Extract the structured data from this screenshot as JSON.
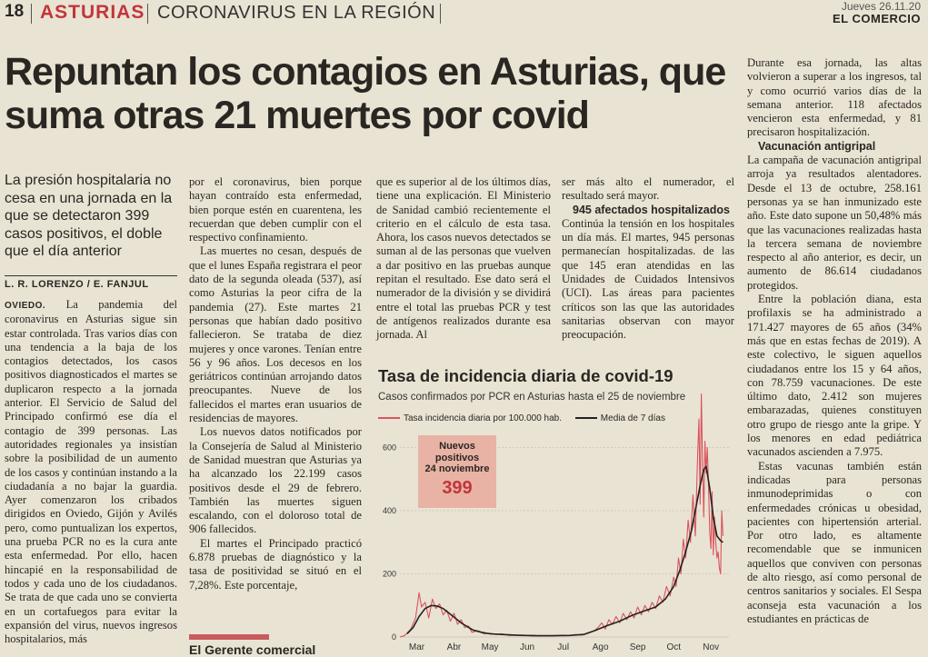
{
  "header": {
    "page_number": "18",
    "section": "ASTURIAS",
    "subsection": "CORONAVIRUS EN LA REGIÓN",
    "date": "Jueves 26.11.20",
    "newspaper": "EL COMERCIO"
  },
  "article": {
    "headline": "Repuntan los contagios en Asturias, que suma otras 21 muertes por covid",
    "deck": "La presión hospitalaria no cesa en una jornada en la que se detectaron 399 casos positivos, el doble que el día anterior",
    "byline": "L. R. LORENZO / E. FANJUL",
    "location": "OVIEDO.",
    "col1_p1": "La pandemia del coronavirus en Asturias sigue sin estar controlada. Tras varios días con una tendencia a la baja de los contagios detectados, los casos positivos diagnosticados el martes se duplicaron respecto a la jornada anterior. El Servicio de Salud del Principado confirmó ese día el contagio de 399 personas. Las autoridades regionales ya insistían sobre la posibilidad de un aumento de los casos y continúan instando a la ciudadanía a no bajar la guardia. Ayer comenzaron los cribados dirigidos en Oviedo, Gijón y Avilés pero, como puntualizan los expertos, una prueba PCR no es la cura ante esta enfermedad. Por ello, hacen hincapié en la responsabilidad de todos y cada uno de los ciudadanos. Se trata de que cada uno se convierta en un cortafuegos para evitar la expansión del virus, nuevos ingresos hospitalarios, más",
    "col2_p1": "por el coronavirus, bien porque hayan contraído esta enfermedad, bien porque estén en cuarentena, les recuerdan que deben cumplir con el respectivo confinamiento.",
    "col2_p2": "Las muertes no cesan, después de que el lunes España registrara el peor dato de la segunda oleada (537), así como Asturias la peor cifra de la pandemia (27). Este martes 21 personas que habían dado positivo fallecieron. Se trataba de diez mujeres y once varones. Tenían entre 56 y 96 años. Los decesos en los geriátricos continúan arrojando datos preocupantes. Nueve de los fallecidos el martes eran usuarios de residencias de mayores.",
    "col2_p3": "Los nuevos datos notificados por la Consejería de Salud al Ministerio de Sanidad muestran que Asturias ya ha alcanzado los 22.199 casos positivos desde el 29 de febrero. También las muertes siguen escalando, con el doloroso total de 906 fallecidos.",
    "col2_p4": "El martes el Principado practicó 6.878 pruebas de diagnóstico y la tasa de positividad se situó en el 7,28%. Este porcentaje,",
    "col2_cut": "El Gerente comercial",
    "col3_p1": "que es superior al de los últimos días, tiene una explicación. El Ministerio de Sanidad cambió recientemente el criterio en el cálculo de esta tasa. Ahora, los casos nuevos detectados se suman al de las personas que vuelven a dar positivo en las pruebas aunque repitan el resultado. Ese dato será el numerador de la división y se dividirá entre el total las pruebas PCR y test de antígenos realizados durante esa jornada. Al",
    "col4_p1": "ser más alto el numerador, el resultado será mayor.",
    "col4_subhead": "945 afectados hospitalizados",
    "col4_p2": "Continúa la tensión en los hospitales un día más. El martes, 945 personas permanecían hospitalizadas. de las que 145 eran atendidas en las Unidades de Cuidados Intensivos (UCI). Las áreas para pacientes críticos son las que las autoridades sanitarias observan con mayor preocupación.",
    "col5_p1": "Durante esa jornada, las altas volvieron a superar a los ingresos, tal y como ocurrió varios días de la semana anterior. 118 afectados vencieron esta enfermedad, y 81 precisaron hospitalización.",
    "col5_subhead": "Vacunación antigripal",
    "col5_p2": "La campaña de vacunación antigripal arroja ya resultados alentadores. Desde el 13 de octubre, 258.161 personas ya se han inmunizado este año. Este dato supone un 50,48% más que las vacunaciones realizadas hasta la tercera semana de noviembre respecto al año anterior, es decir, un aumento de 86.614 ciudadanos protegidos.",
    "col5_p3": "Entre la población diana, esta profilaxis se ha administrado a 171.427 mayores de 65 años (34% más que en estas fechas de 2019). A este colectivo, le siguen aquellos ciudadanos entre los 15 y 64 años, con 78.759 vacunaciones. De este último dato, 2.412 son mujeres embarazadas, quienes constituyen otro grupo de riesgo ante la gripe. Y los menores en edad pediátrica vacunados ascienden a 7.975.",
    "col5_p4": "Estas vacunas también están indicadas para personas inmunodeprimidas o con enfermedades crónicas u obesidad, pacientes con hipertensión arterial. Por otro lado, es altamente recomendable que se inmunicen aquellos que conviven con personas de alto riesgo, así como personal de centros sanitarios y sociales. El Sespa aconseja esta vacunación a los estudiantes en prácticas de"
  },
  "chart": {
    "title": "Tasa de incidencia diaria de covid-19",
    "subtitle": "Casos confirmados por PCR en Asturias hasta el 25 de noviembre",
    "legend_rate": "Tasa incidencia diaria por 100.000 hab.",
    "legend_avg": "Media de 7 días",
    "callout_label_1": "Nuevos",
    "callout_label_2": "positivos",
    "callout_label_3": "24 noviembre",
    "callout_value": "399",
    "colors": {
      "rate": "#d9545e",
      "avg": "#222222",
      "callout_bg": "#e8b3a4",
      "accent": "#c2353c"
    }
  },
  "chart_data": {
    "type": "line",
    "title": "Tasa de incidencia diaria de covid-19",
    "subtitle": "Casos confirmados por PCR en Asturias hasta el 25 de noviembre",
    "x_tick_labels": [
      "Mar",
      "Abr",
      "May",
      "Jun",
      "Jul",
      "Ago",
      "Sep",
      "Oct",
      "Nov"
    ],
    "y_ticks": [
      0,
      200,
      400,
      600
    ],
    "ylim": [
      0,
      800
    ],
    "annotation": {
      "label": "Nuevos positivos 24 noviembre",
      "value": 399
    },
    "series": [
      {
        "name": "Tasa incidencia diaria por 100.000 hab.",
        "color": "#d9545e",
        "points": [
          [
            "03-01",
            0
          ],
          [
            "03-05",
            5
          ],
          [
            "03-10",
            25
          ],
          [
            "03-14",
            60
          ],
          [
            "03-17",
            140
          ],
          [
            "03-19",
            95
          ],
          [
            "03-22",
            110
          ],
          [
            "03-25",
            60
          ],
          [
            "03-28",
            120
          ],
          [
            "03-31",
            90
          ],
          [
            "04-03",
            105
          ],
          [
            "04-06",
            70
          ],
          [
            "04-09",
            85
          ],
          [
            "04-12",
            50
          ],
          [
            "04-15",
            75
          ],
          [
            "04-18",
            40
          ],
          [
            "04-21",
            55
          ],
          [
            "04-24",
            30
          ],
          [
            "04-27",
            35
          ],
          [
            "04-30",
            15
          ],
          [
            "05-05",
            20
          ],
          [
            "05-10",
            10
          ],
          [
            "05-15",
            12
          ],
          [
            "05-20",
            8
          ],
          [
            "05-25",
            10
          ],
          [
            "05-31",
            5
          ],
          [
            "06-05",
            6
          ],
          [
            "06-10",
            4
          ],
          [
            "06-15",
            5
          ],
          [
            "06-20",
            6
          ],
          [
            "06-25",
            3
          ],
          [
            "06-30",
            4
          ],
          [
            "07-05",
            3
          ],
          [
            "07-10",
            5
          ],
          [
            "07-15",
            6
          ],
          [
            "07-20",
            4
          ],
          [
            "07-25",
            8
          ],
          [
            "07-31",
            6
          ],
          [
            "08-05",
            12
          ],
          [
            "08-10",
            20
          ],
          [
            "08-13",
            30
          ],
          [
            "08-16",
            45
          ],
          [
            "08-19",
            25
          ],
          [
            "08-22",
            55
          ],
          [
            "08-25",
            40
          ],
          [
            "08-28",
            65
          ],
          [
            "08-31",
            45
          ],
          [
            "09-03",
            75
          ],
          [
            "09-06",
            55
          ],
          [
            "09-09",
            80
          ],
          [
            "09-12",
            60
          ],
          [
            "09-15",
            95
          ],
          [
            "09-18",
            70
          ],
          [
            "09-21",
            100
          ],
          [
            "09-24",
            80
          ],
          [
            "09-27",
            110
          ],
          [
            "09-30",
            90
          ],
          [
            "10-03",
            130
          ],
          [
            "10-06",
            110
          ],
          [
            "10-09",
            160
          ],
          [
            "10-12",
            130
          ],
          [
            "10-15",
            190
          ],
          [
            "10-17",
            160
          ],
          [
            "10-19",
            250
          ],
          [
            "10-21",
            200
          ],
          [
            "10-23",
            310
          ],
          [
            "10-25",
            250
          ],
          [
            "10-27",
            370
          ],
          [
            "10-29",
            300
          ],
          [
            "10-31",
            450
          ],
          [
            "11-02",
            320
          ],
          [
            "11-04",
            580
          ],
          [
            "11-05",
            690
          ],
          [
            "11-06",
            420
          ],
          [
            "11-07",
            770
          ],
          [
            "11-08",
            560
          ],
          [
            "11-09",
            380
          ],
          [
            "11-10",
            620
          ],
          [
            "11-11",
            520
          ],
          [
            "11-12",
            600
          ],
          [
            "11-13",
            480
          ],
          [
            "11-14",
            330
          ],
          [
            "11-15",
            280
          ],
          [
            "11-16",
            460
          ],
          [
            "11-17",
            260
          ],
          [
            "11-18",
            380
          ],
          [
            "11-19",
            300
          ],
          [
            "11-20",
            250
          ],
          [
            "11-21",
            270
          ],
          [
            "11-22",
            220
          ],
          [
            "11-23",
            200
          ],
          [
            "11-24",
            399
          ],
          [
            "11-25",
            320
          ]
        ]
      },
      {
        "name": "Media de 7 días",
        "color": "#222222",
        "points": [
          [
            "03-07",
            10
          ],
          [
            "03-12",
            30
          ],
          [
            "03-17",
            65
          ],
          [
            "03-22",
            90
          ],
          [
            "03-27",
            100
          ],
          [
            "04-01",
            98
          ],
          [
            "04-06",
            90
          ],
          [
            "04-11",
            75
          ],
          [
            "04-16",
            60
          ],
          [
            "04-21",
            45
          ],
          [
            "04-26",
            33
          ],
          [
            "05-01",
            22
          ],
          [
            "05-08",
            15
          ],
          [
            "05-15",
            10
          ],
          [
            "05-25",
            8
          ],
          [
            "06-05",
            6
          ],
          [
            "06-20",
            4
          ],
          [
            "07-05",
            4
          ],
          [
            "07-20",
            5
          ],
          [
            "08-01",
            8
          ],
          [
            "08-10",
            20
          ],
          [
            "08-20",
            35
          ],
          [
            "08-31",
            50
          ],
          [
            "09-10",
            68
          ],
          [
            "09-20",
            82
          ],
          [
            "09-30",
            95
          ],
          [
            "10-08",
            120
          ],
          [
            "10-15",
            160
          ],
          [
            "10-20",
            210
          ],
          [
            "10-25",
            270
          ],
          [
            "10-30",
            340
          ],
          [
            "11-03",
            420
          ],
          [
            "11-06",
            480
          ],
          [
            "11-09",
            530
          ],
          [
            "11-11",
            540
          ],
          [
            "11-14",
            470
          ],
          [
            "11-17",
            380
          ],
          [
            "11-20",
            320
          ],
          [
            "11-23",
            305
          ],
          [
            "11-25",
            300
          ]
        ]
      }
    ]
  }
}
